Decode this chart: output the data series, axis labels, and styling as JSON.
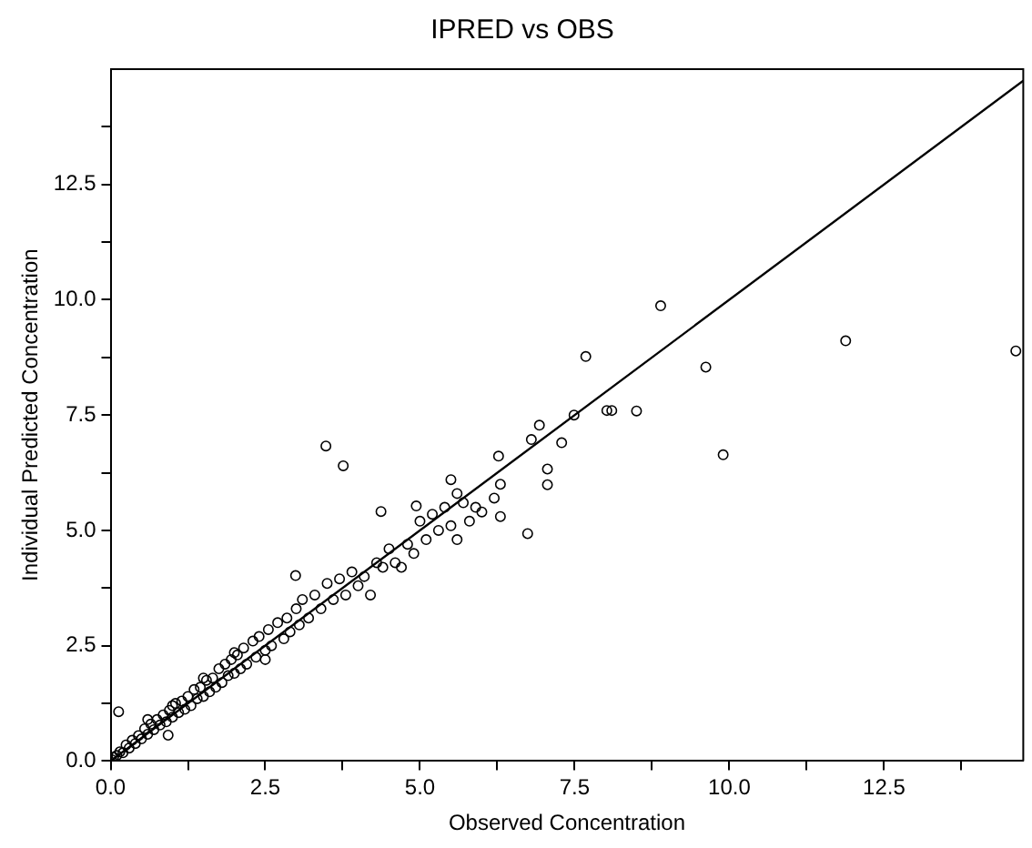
{
  "chart_data": {
    "type": "scatter",
    "title": "IPRED vs OBS",
    "xlabel": "Observed Concentration",
    "ylabel": "Individual Predicted Concentration",
    "xlim": [
      0,
      14.75
    ],
    "ylim": [
      0,
      15
    ],
    "xticks": [
      {
        "value": 0,
        "label": "0.0"
      },
      {
        "value": 1.25,
        "label": null
      },
      {
        "value": 2.5,
        "label": "2.5"
      },
      {
        "value": 3.75,
        "label": null
      },
      {
        "value": 5,
        "label": "5.0"
      },
      {
        "value": 6.25,
        "label": null
      },
      {
        "value": 7.5,
        "label": "7.5"
      },
      {
        "value": 8.75,
        "label": null
      },
      {
        "value": 10,
        "label": "10.0"
      },
      {
        "value": 11.25,
        "label": null
      },
      {
        "value": 12.5,
        "label": "12.5"
      },
      {
        "value": 13.75,
        "label": null
      }
    ],
    "yticks": [
      {
        "value": 0,
        "label": "0.0"
      },
      {
        "value": 1.25,
        "label": null
      },
      {
        "value": 2.5,
        "label": "2.5"
      },
      {
        "value": 3.75,
        "label": null
      },
      {
        "value": 5,
        "label": "5.0"
      },
      {
        "value": 6.25,
        "label": null
      },
      {
        "value": 7.5,
        "label": "7.5"
      },
      {
        "value": 8.75,
        "label": null
      },
      {
        "value": 10,
        "label": "10.0"
      },
      {
        "value": 11.25,
        "label": null
      },
      {
        "value": 12.5,
        "label": "12.5"
      },
      {
        "value": 13.75,
        "label": null
      }
    ],
    "grid": false,
    "legend": false,
    "marker": "circle",
    "series": [
      {
        "color": "#000000",
        "x": [
          0.02,
          0.05,
          0.1,
          0.15,
          0.2,
          0.25,
          0.3,
          0.35,
          0.4,
          0.45,
          0.5,
          0.55,
          0.6,
          0.65,
          0.7,
          0.75,
          0.8,
          0.85,
          0.9,
          0.95,
          1.0,
          1.05,
          1.1,
          1.15,
          1.2,
          1.25,
          1.3,
          1.35,
          1.4,
          1.45,
          1.5,
          1.55,
          1.6,
          1.65,
          1.7,
          1.75,
          1.8,
          1.85,
          1.9,
          1.95,
          2.0,
          2.05,
          2.1,
          2.15,
          2.2,
          2.3,
          2.35,
          2.4,
          2.5,
          2.55,
          2.6,
          2.7,
          2.8,
          2.85,
          2.9,
          3.0,
          3.05,
          3.1,
          3.2,
          3.3,
          3.4,
          3.5,
          3.6,
          3.7,
          3.8,
          3.9,
          4.0,
          4.1,
          4.2,
          4.3,
          4.4,
          4.5,
          4.6,
          4.7,
          4.8,
          4.9,
          5.0,
          5.1,
          5.2,
          5.3,
          5.4,
          5.5,
          5.5,
          5.6,
          5.6,
          5.7,
          5.8,
          5.9,
          6.0,
          6.2,
          6.3,
          6.3,
          1.0,
          0.6,
          1.5,
          2.0,
          2.5,
          0.93,
          0.13,
          2.99,
          3.48,
          3.76,
          4.37,
          4.94,
          6.27,
          6.74,
          6.8,
          6.93,
          7.06,
          7.06,
          7.29,
          7.49,
          7.68,
          8.02,
          8.1,
          8.5,
          8.89,
          9.62,
          9.9,
          11.88,
          14.63
        ],
        "values": [
          0.03,
          0.08,
          0.12,
          0.2,
          0.18,
          0.35,
          0.28,
          0.45,
          0.38,
          0.55,
          0.48,
          0.7,
          0.58,
          0.8,
          0.68,
          0.9,
          0.78,
          1.0,
          0.85,
          1.1,
          0.95,
          1.25,
          1.05,
          1.3,
          1.12,
          1.4,
          1.2,
          1.55,
          1.35,
          1.6,
          1.4,
          1.75,
          1.5,
          1.8,
          1.6,
          2.0,
          1.7,
          2.1,
          1.85,
          2.2,
          1.9,
          2.3,
          2.0,
          2.45,
          2.1,
          2.6,
          2.25,
          2.7,
          2.4,
          2.85,
          2.5,
          3.0,
          2.65,
          3.1,
          2.8,
          3.3,
          2.95,
          3.5,
          3.1,
          3.6,
          3.3,
          3.85,
          3.5,
          3.95,
          3.6,
          4.1,
          3.8,
          4.0,
          3.6,
          4.3,
          4.2,
          4.6,
          4.3,
          4.2,
          4.7,
          4.5,
          5.2,
          4.8,
          5.35,
          5.0,
          5.5,
          5.1,
          6.1,
          5.8,
          4.8,
          5.6,
          5.2,
          5.5,
          5.4,
          5.7,
          5.3,
          6.0,
          1.2,
          0.9,
          1.8,
          2.35,
          2.2,
          0.56,
          1.07,
          4.02,
          6.83,
          6.4,
          5.41,
          5.53,
          6.61,
          4.93,
          6.97,
          7.28,
          6.33,
          5.99,
          6.9,
          7.5,
          8.77,
          7.6,
          7.6,
          7.59,
          9.87,
          8.54,
          6.64,
          9.11,
          8.89
        ]
      },
      {
        "type": "line",
        "color": "#000000",
        "marker": "none",
        "x": [
          0,
          14.75
        ],
        "values": [
          0,
          14.75
        ]
      }
    ]
  }
}
